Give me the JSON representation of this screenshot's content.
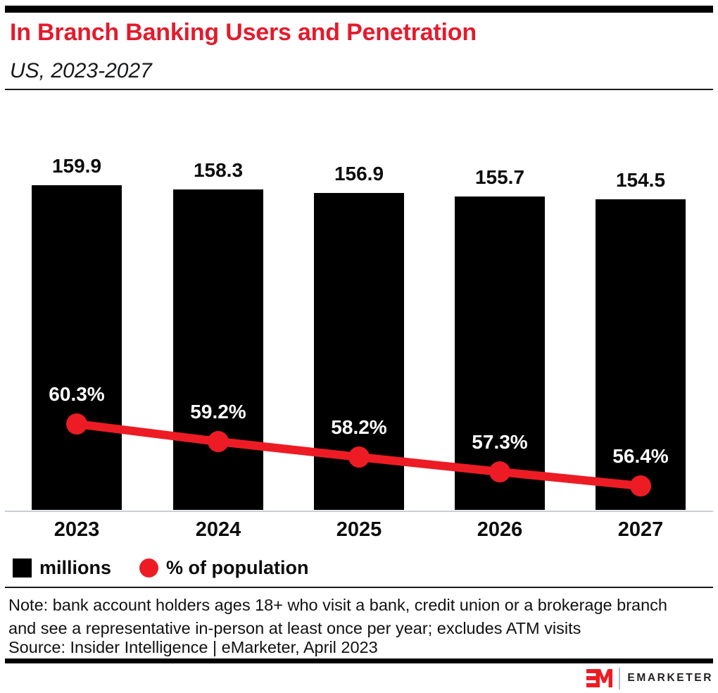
{
  "header": {
    "title": "In Branch Banking Users and Penetration",
    "subtitle": "US, 2023-2027"
  },
  "chart_data": {
    "type": "bar",
    "subtype": "bar-line-combo",
    "title": "In Branch Banking Users and Penetration",
    "subtitle": "US, 2023-2027",
    "categories": [
      "2023",
      "2024",
      "2025",
      "2026",
      "2027"
    ],
    "series": [
      {
        "name": "millions",
        "type": "bar",
        "color": "#000000",
        "values": [
          159.9,
          158.3,
          156.9,
          155.7,
          154.5
        ],
        "labels": [
          "159.9",
          "158.3",
          "156.9",
          "155.7",
          "154.5"
        ]
      },
      {
        "name": "% of population",
        "type": "line",
        "color": "#ed1c24",
        "values": [
          60.3,
          59.2,
          58.2,
          57.3,
          56.4
        ],
        "labels": [
          "60.3%",
          "59.2%",
          "58.2%",
          "57.3%",
          "56.4%"
        ]
      }
    ],
    "xlabel": "",
    "ylabel": "",
    "grid": false,
    "y_axis_visible": false,
    "legend_position": "bottom-left"
  },
  "legend": {
    "items": [
      {
        "label": "millions",
        "swatch": "square",
        "color": "#000000"
      },
      {
        "label": "% of population",
        "swatch": "circle",
        "color": "#ed1c24"
      }
    ]
  },
  "note": {
    "lines": [
      "Note: bank account holders ages 18+ who visit a bank, credit union or a brokerage branch",
      "and see a representative in-person at least once per year; excludes ATM visits"
    ],
    "source": "Source: Insider Intelligence | eMarketer, April 2023"
  },
  "footer": {
    "logo_monogram": "EM",
    "brand": "EMARKETER"
  },
  "colors": {
    "title_red": "#e31b2d",
    "chart_red": "#ed1c24",
    "bar_black": "#000000",
    "axis_gray": "#c9ced6"
  }
}
